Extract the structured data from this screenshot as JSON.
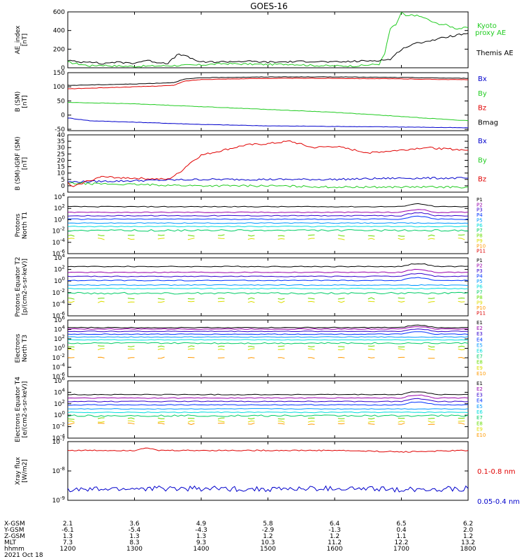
{
  "title": "GOES-16",
  "date_label": "2021 Oct 18",
  "colors": {
    "black": "#000000",
    "red": "#e00000",
    "green": "#22cc22",
    "blue": "#0000cc",
    "p_palette": [
      "#000000",
      "#9900aa",
      "#3300cc",
      "#0033ff",
      "#0099ff",
      "#00dddd",
      "#00cc66",
      "#66dd00",
      "#dddd00",
      "#ff9900",
      "#dd0000"
    ],
    "e_palette": [
      "#000000",
      "#9900aa",
      "#3300cc",
      "#0033ff",
      "#0099ff",
      "#00dddd",
      "#00cc66",
      "#66dd00",
      "#dddd00",
      "#ff9900",
      "#dd0000"
    ]
  },
  "x_ticks": [
    "1200",
    "1300",
    "1400",
    "1500",
    "1600",
    "1700",
    "1800"
  ],
  "orbit_table": {
    "row_labels": [
      "X-GSM",
      "Y-GSM",
      "Z-GSM",
      "MLT",
      "hhmm"
    ],
    "columns": [
      [
        "2.1",
        "-6.1",
        "1.3",
        "7.3",
        "1200"
      ],
      [
        "3.6",
        "-5.4",
        "1.3",
        "8.3",
        "1300"
      ],
      [
        "4.9",
        "-4.3",
        "1.3",
        "9.3",
        "1400"
      ],
      [
        "5.8",
        "-2.9",
        "1.2",
        "10.3",
        "1500"
      ],
      [
        "6.4",
        "-1.3",
        "1.2",
        "11.2",
        "1600"
      ],
      [
        "6.5",
        "0.4",
        "1.1",
        "12.2",
        "1700"
      ],
      [
        "6.2",
        "2.0",
        "1.2",
        "13.2",
        "1800"
      ]
    ]
  },
  "chart_data": [
    {
      "type": "line",
      "ylabel": "AE_index [nT]",
      "ylim": [
        0,
        600
      ],
      "yticks": [
        "0",
        "200",
        "400",
        "600"
      ],
      "legend": [
        "Kyoto proxy AE",
        "Themis AE"
      ],
      "series": [
        {
          "name": "Kyoto proxy AE",
          "color": "green",
          "x": [
            1200,
            1210,
            1220,
            1230,
            1240,
            1300,
            1320,
            1340,
            1400,
            1420,
            1440,
            1500,
            1520,
            1540,
            1600,
            1620,
            1640,
            1645,
            1650,
            1655,
            1700,
            1705,
            1710,
            1720,
            1730,
            1740,
            1750,
            1800
          ],
          "values": [
            60,
            40,
            20,
            30,
            20,
            15,
            20,
            25,
            30,
            45,
            40,
            35,
            40,
            25,
            20,
            20,
            40,
            150,
            420,
            460,
            590,
            550,
            570,
            540,
            480,
            460,
            420,
            430
          ]
        },
        {
          "name": "Themis AE",
          "color": "black",
          "x": [
            1200,
            1210,
            1220,
            1230,
            1240,
            1300,
            1310,
            1320,
            1330,
            1340,
            1400,
            1420,
            1440,
            1500,
            1520,
            1540,
            1600,
            1620,
            1640,
            1650,
            1700,
            1710,
            1720,
            1730,
            1740,
            1750,
            1800
          ],
          "values": [
            80,
            60,
            70,
            40,
            60,
            50,
            80,
            60,
            50,
            150,
            60,
            65,
            70,
            60,
            65,
            70,
            60,
            70,
            80,
            90,
            200,
            250,
            280,
            300,
            330,
            350,
            370
          ]
        }
      ]
    },
    {
      "type": "line",
      "ylabel": "B (SM) [nT]",
      "ylim": [
        -55,
        150
      ],
      "yticks": [
        "-50",
        "0",
        "50",
        "100",
        "150"
      ],
      "legend": [
        "Bx",
        "By",
        "Bz",
        "Bmag"
      ],
      "series": [
        {
          "name": "Bx",
          "color": "blue",
          "x": [
            1200,
            1220,
            1300,
            1400,
            1500,
            1600,
            1700,
            1800
          ],
          "values": [
            -10,
            -20,
            -25,
            -33,
            -38,
            -40,
            -42,
            -45
          ]
        },
        {
          "name": "By",
          "color": "green",
          "x": [
            1200,
            1300,
            1400,
            1500,
            1600,
            1700,
            1800
          ],
          "values": [
            45,
            40,
            30,
            20,
            10,
            -5,
            -20
          ]
        },
        {
          "name": "Bz",
          "color": "red",
          "x": [
            1200,
            1300,
            1335,
            1345,
            1400,
            1500,
            1600,
            1700,
            1800
          ],
          "values": [
            93,
            100,
            105,
            120,
            126,
            130,
            130,
            128,
            125
          ]
        },
        {
          "name": "Bmag",
          "color": "black",
          "x": [
            1200,
            1300,
            1335,
            1345,
            1400,
            1500,
            1600,
            1700,
            1800
          ],
          "values": [
            105,
            110,
            115,
            127,
            132,
            135,
            135,
            133,
            130
          ]
        }
      ]
    },
    {
      "type": "line",
      "ylabel": "B (SM)-IGRF (SM) [nT]",
      "ylim": [
        -5,
        40
      ],
      "yticks": [
        "0",
        "5",
        "10",
        "15",
        "20",
        "25",
        "30",
        "35",
        "40"
      ],
      "legend": [
        "Bx",
        "By",
        "Bz"
      ],
      "series": [
        {
          "name": "Bx",
          "color": "blue",
          "x": [
            1200,
            1300,
            1400,
            1500,
            1600,
            1700,
            1800
          ],
          "values": [
            3,
            4,
            5,
            5,
            5,
            6,
            6
          ]
        },
        {
          "name": "By",
          "color": "green",
          "x": [
            1200,
            1300,
            1400,
            1500,
            1600,
            1700,
            1800
          ],
          "values": [
            2,
            1,
            0,
            0,
            -1,
            -1,
            -1
          ]
        },
        {
          "name": "Bz",
          "color": "red",
          "x": [
            1200,
            1205,
            1215,
            1230,
            1300,
            1330,
            1340,
            1350,
            1400,
            1420,
            1440,
            1500,
            1520,
            1540,
            1600,
            1630,
            1700,
            1720,
            1740,
            1800
          ],
          "values": [
            2,
            -1,
            3,
            7,
            6,
            5,
            10,
            18,
            24,
            28,
            32,
            33,
            35,
            30,
            31,
            26,
            28,
            30,
            29,
            28
          ]
        }
      ]
    },
    {
      "type": "line",
      "ylabel": "Protons North T1",
      "yscale": "log",
      "ylim": [
        -6,
        4
      ],
      "yticks": [
        "10-6",
        "10-4",
        "10-2",
        "100",
        "102",
        "104"
      ],
      "legend": [
        "P1",
        "P2",
        "P3",
        "P4",
        "P5",
        "P6",
        "P7",
        "P8",
        "P9",
        "P10",
        "P11"
      ],
      "levels": [
        2.3,
        1.3,
        0.7,
        0.1,
        -0.6,
        -1.2,
        -1.9,
        -2.8,
        -3.4,
        null,
        null
      ]
    },
    {
      "type": "line",
      "ylabel": "Protons Equator T2 [p/(cm2-s-sr-keV)]",
      "yscale": "log",
      "ylim": [
        -6,
        4
      ],
      "yticks": [
        "10-6",
        "10-4",
        "10-2",
        "100",
        "102",
        "104"
      ],
      "legend": [
        "P1",
        "P2",
        "P3",
        "P4",
        "P5",
        "P6",
        "P7",
        "P8",
        "P9",
        "P10",
        "P11"
      ],
      "levels": [
        2.5,
        1.5,
        0.8,
        0.1,
        -0.7,
        -1.3,
        -2.1,
        -3.0,
        -3.6,
        null,
        null
      ]
    },
    {
      "type": "line",
      "ylabel": "Electrons North T3",
      "yscale": "log",
      "ylim": [
        -6,
        6
      ],
      "yticks": [
        "10-6",
        "10-4",
        "10-2",
        "100",
        "102",
        "104",
        "106"
      ],
      "legend": [
        "E1",
        "E2",
        "E3",
        "E4",
        "E5",
        "E6",
        "E7",
        "E8",
        "E9",
        "E10"
      ],
      "levels": [
        4.4,
        4.1,
        3.6,
        3.0,
        2.4,
        1.8,
        1.1,
        0.4,
        -0.2,
        -2.0
      ]
    },
    {
      "type": "line",
      "ylabel": "Electrons Equator T4 [e/(cm2-s-sr-keV)]",
      "yscale": "log",
      "ylim": [
        -4,
        6
      ],
      "yticks": [
        "10-4",
        "10-2",
        "100",
        "102",
        "104",
        "106"
      ],
      "legend": [
        "E1",
        "E2",
        "E3",
        "E4",
        "E5",
        "E6",
        "E7",
        "E8",
        "E9",
        "E10"
      ],
      "levels": [
        3.6,
        3.0,
        2.4,
        1.8,
        1.1,
        0.5,
        -0.1,
        -0.6,
        -1.1,
        -1.5
      ]
    },
    {
      "type": "line",
      "ylabel": "Xray flux [W/m2]",
      "yscale": "log",
      "ylim": [
        -9,
        -7
      ],
      "yticks": [
        "10-9",
        "10-8",
        "10-7"
      ],
      "legend": [
        "0.1-0.8 nm",
        "0.05-0.4 nm"
      ],
      "series": [
        {
          "name": "0.1-0.8 nm",
          "color": "red",
          "x": [
            1200,
            1300,
            1310,
            1320,
            1400,
            1500,
            1600,
            1700,
            1800
          ],
          "values": [
            -7.3,
            -7.3,
            -7.2,
            -7.3,
            -7.3,
            -7.3,
            -7.3,
            -7.35,
            -7.3
          ]
        },
        {
          "name": "0.05-0.4 nm",
          "color": "blue",
          "x": [
            1200,
            1300,
            1400,
            1500,
            1600,
            1700,
            1800
          ],
          "values": [
            -8.65,
            -8.6,
            -8.6,
            -8.62,
            -8.6,
            -8.63,
            -8.6
          ]
        }
      ]
    }
  ]
}
